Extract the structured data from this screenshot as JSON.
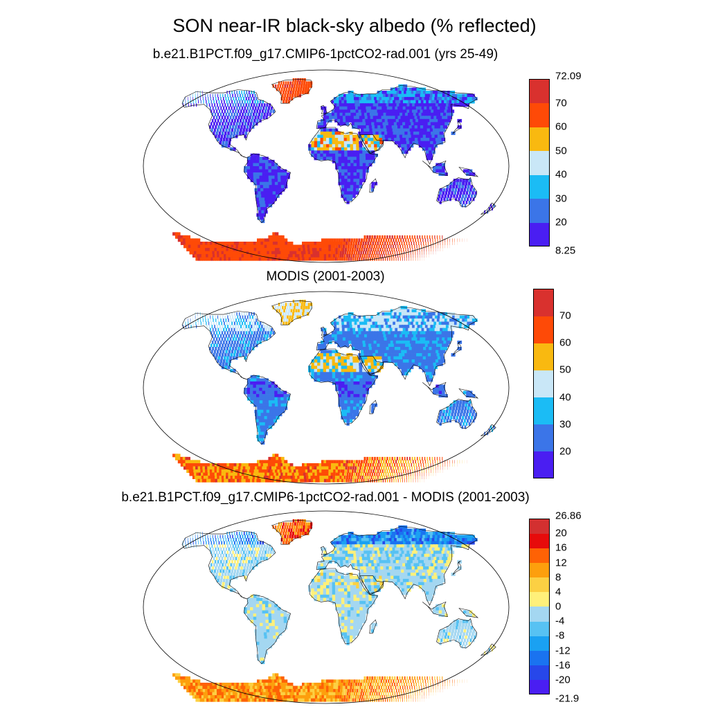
{
  "title": "SON near-IR black-sky albedo (% reflected)",
  "panels": [
    {
      "title": "b.e21.B1PCT.f09_g17.CMIP6-1pctCO2-rad.001 (yrs 25-49)",
      "colorbar": {
        "colors": [
          "#4a1ef2",
          "#3b75e8",
          "#1bbcf5",
          "#c9e7f7",
          "#f9b910",
          "#fe4a07",
          "#d9312e"
        ],
        "labels": [
          "8.25",
          "20",
          "30",
          "40",
          "50",
          "60",
          "70",
          "72.09"
        ]
      }
    },
    {
      "title": "MODIS (2001-2003)",
      "colorbar": {
        "colors": [
          "#4a1ef2",
          "#3b75e8",
          "#1bbcf5",
          "#c9e7f7",
          "#f9b910",
          "#fe4a07",
          "#d9312e"
        ],
        "labels": [
          "20",
          "30",
          "40",
          "50",
          "60",
          "70"
        ]
      }
    },
    {
      "title": "b.e21.B1PCT.f09_g17.CMIP6-1pctCO2-rad.001 - MODIS (2001-2003)",
      "colorbar": {
        "colors": [
          "#4a1ef2",
          "#2747ea",
          "#1a73f0",
          "#1aa1f2",
          "#57c2f3",
          "#a4d7f1",
          "#fff07a",
          "#fcd043",
          "#fd9f0d",
          "#fe6205",
          "#e70b0b",
          "#d33030"
        ],
        "labels": [
          "-21.9",
          "-20",
          "-16",
          "-12",
          "-8",
          "-4",
          "0",
          "4",
          "8",
          "12",
          "16",
          "20",
          "26.86"
        ]
      }
    }
  ]
}
